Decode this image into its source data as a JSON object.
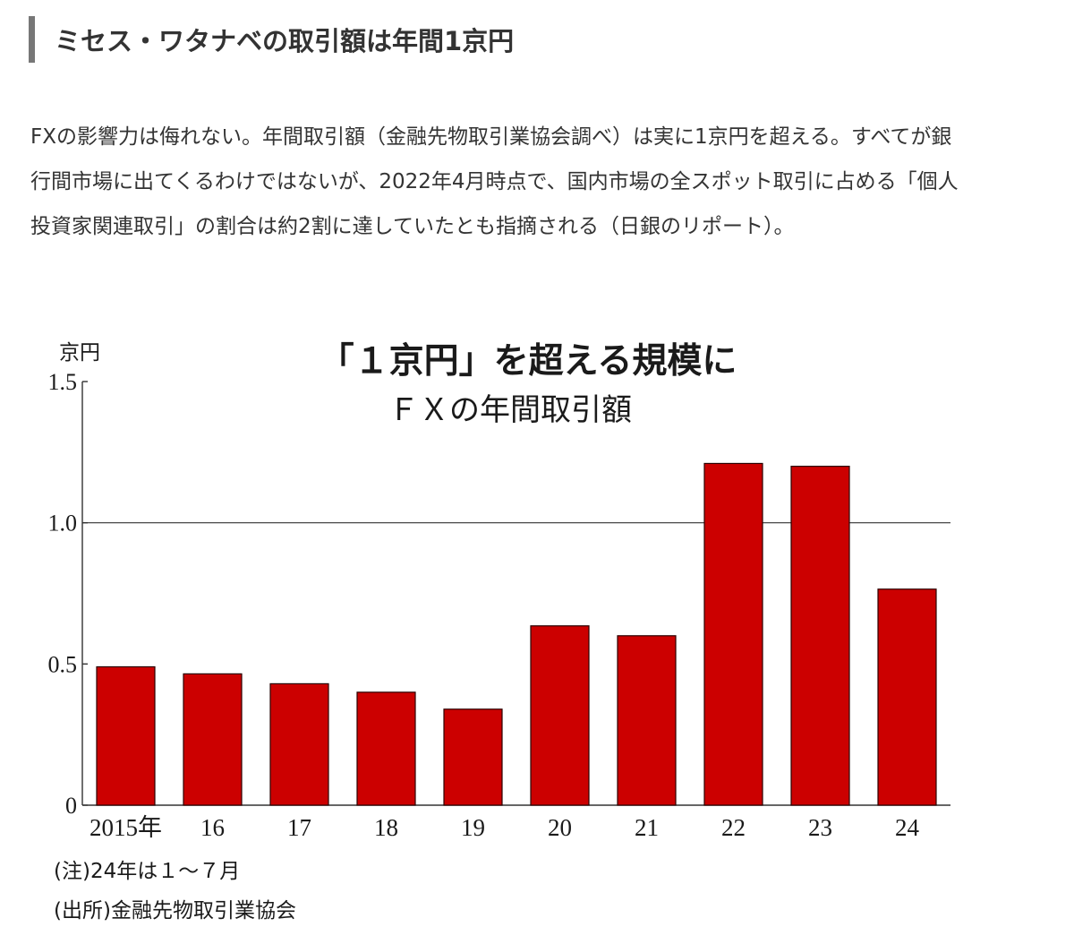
{
  "article": {
    "heading": "ミセス・ワタナベの取引額は年間1京円",
    "body": "FXの影響力は侮れない。年間取引額（金融先物取引業協会調べ）は実に1京円を超える。すべてが銀行間市場に出てくるわけではないが、2022年4月時点で、国内市場の全スポット取引に占める「個人投資家関連取引」の割合は約2割に達していたとも指摘される（日銀のリポート）。"
  },
  "figure": {
    "unit_label": "京円",
    "note": "(注)24年は１～７月",
    "source": "(出所)金融先物取引業協会"
  },
  "colors": {
    "bar": "#cc0000",
    "bar_outline": "#2a0000",
    "axis": "#333333"
  },
  "chart_data": {
    "type": "bar",
    "title": "「１京円」を超える規模に",
    "subtitle": "ＦＸの年間取引額",
    "ylabel": "京円",
    "xlabel": "",
    "categories": [
      "2015年",
      "16",
      "17",
      "18",
      "19",
      "20",
      "21",
      "22",
      "23",
      "24"
    ],
    "values": [
      0.49,
      0.465,
      0.43,
      0.4,
      0.34,
      0.635,
      0.6,
      1.21,
      1.2,
      0.765
    ],
    "ylim": [
      0,
      1.5
    ],
    "yticks": [
      0,
      0.5,
      1.0,
      1.5
    ],
    "ytick_labels": [
      "0",
      "0.5",
      "1.0",
      "1.5"
    ],
    "reference_line": 1.0,
    "grid": false,
    "legend": "none"
  }
}
